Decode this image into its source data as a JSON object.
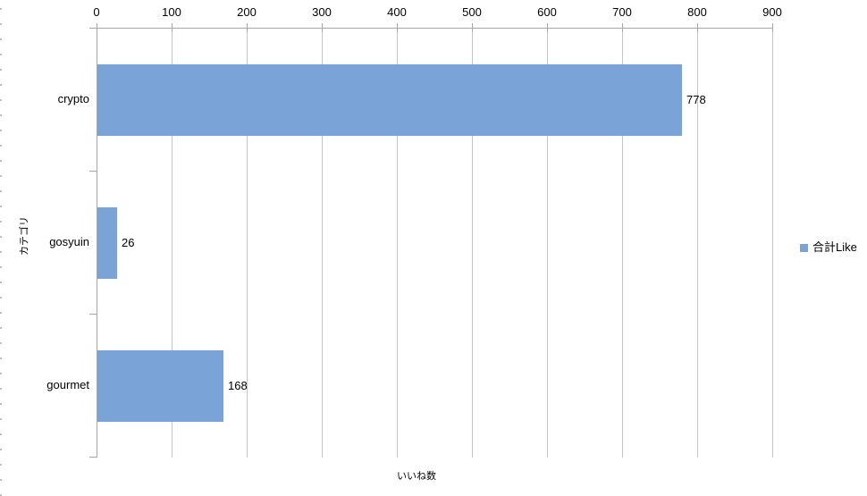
{
  "colors": {
    "background": "#FFFFFF",
    "bar": "#7AA3D8",
    "grid": "#C6C6C6",
    "axis": "#A6A6A6",
    "text": "#000000",
    "edge_dash": "#BFBFBF"
  },
  "chart_data": {
    "type": "bar",
    "orientation": "horizontal",
    "categories": [
      "crypto",
      "gosyuin",
      "gourmet"
    ],
    "series": [
      {
        "name": "合計Like",
        "values": [
          778,
          26,
          168
        ]
      }
    ],
    "data_labels": [
      "778",
      "26",
      "168"
    ],
    "xlabel": "いいね数",
    "ylabel": "カテゴリ",
    "xlim": [
      0,
      900
    ],
    "tick_step": 100,
    "tick_labels": [
      "0",
      "100",
      "200",
      "300",
      "400",
      "500",
      "600",
      "700",
      "800",
      "900"
    ],
    "grid": true,
    "legend_position": "right"
  }
}
